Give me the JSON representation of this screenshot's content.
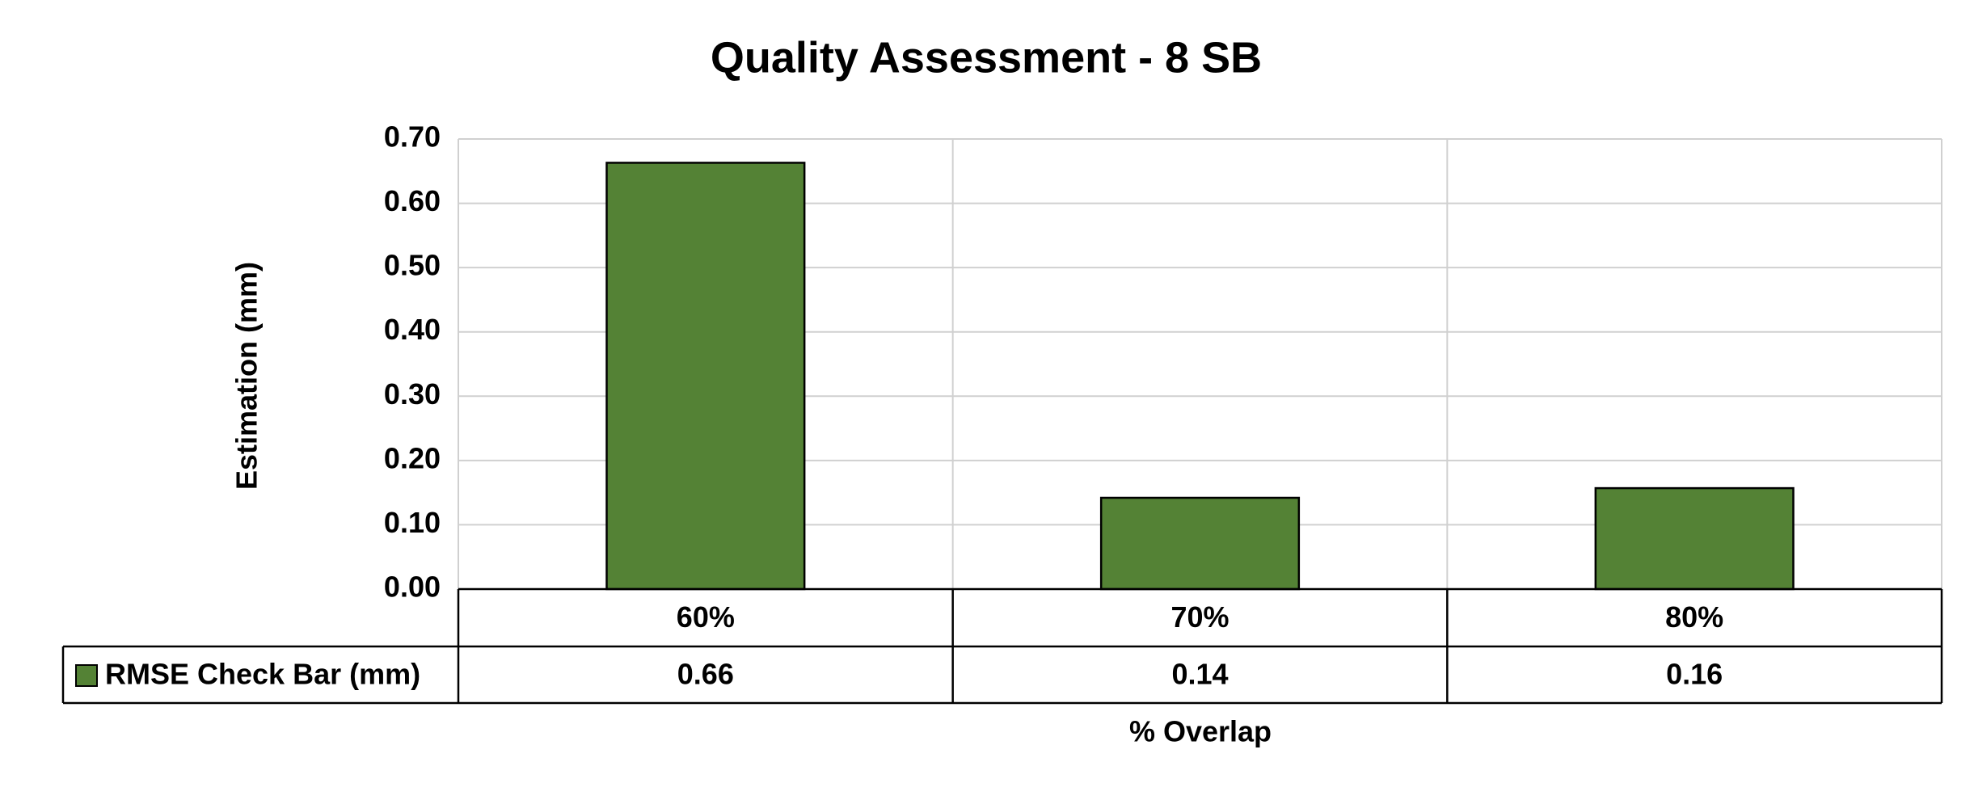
{
  "chart_data": {
    "type": "bar",
    "title": "Quality Assessment - 8 SB",
    "x_label": "% Overlap",
    "y_label": "Estimation (mm)",
    "categories": [
      "60%",
      "70%",
      "80%"
    ],
    "series": [
      {
        "name": "RMSE Check Bar (mm)",
        "color": "#548235",
        "values": [
          0.663,
          0.142,
          0.157
        ],
        "value_labels": [
          "0.66",
          "0.14",
          "0.16"
        ]
      }
    ],
    "ylim": [
      0,
      0.7
    ],
    "yticks": [
      {
        "value": 0,
        "label": "0.00"
      },
      {
        "value": 0.1,
        "label": "0.10"
      },
      {
        "value": 0.2,
        "label": "0.20"
      },
      {
        "value": 0.3,
        "label": "0.30"
      },
      {
        "value": 0.4,
        "label": "0.40"
      },
      {
        "value": 0.5,
        "label": "0.50"
      },
      {
        "value": 0.6,
        "label": "0.60"
      },
      {
        "value": 0.7,
        "label": "0.70"
      }
    ],
    "grid": true,
    "data_table": true
  }
}
